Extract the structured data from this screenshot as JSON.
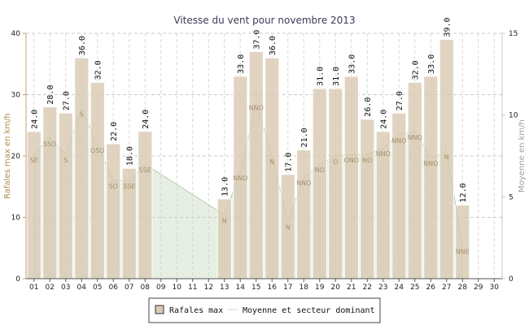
{
  "chart_data": {
    "type": "bar",
    "title": "Vitesse du vent pour novembre 2013",
    "ylabel_left": "Rafales max en km/h",
    "ylabel_right": "Moyenne en km/h",
    "ylim_left": [
      0,
      40
    ],
    "ylim_right": [
      0,
      15
    ],
    "yticks_left": [
      "0",
      "10",
      "20",
      "30",
      "40"
    ],
    "yticks_right": [
      "0",
      "5",
      "10",
      "15"
    ],
    "grid": true,
    "categories": [
      "01",
      "02",
      "03",
      "04",
      "05",
      "06",
      "07",
      "08",
      "09",
      "10",
      "11",
      "12",
      "13",
      "14",
      "15",
      "16",
      "17",
      "18",
      "19",
      "20",
      "21",
      "22",
      "23",
      "24",
      "25",
      "26",
      "27",
      "28",
      "29",
      "30"
    ],
    "series": [
      {
        "name": "Rafales max",
        "type": "bar",
        "color": "#d9cbb3",
        "values": [
          24.0,
          28.0,
          27.0,
          36.0,
          32.0,
          22.0,
          18.0,
          24.0,
          null,
          null,
          null,
          null,
          13.0,
          33.0,
          37.0,
          36.0,
          17.0,
          21.0,
          31.0,
          31.0,
          33.0,
          26.0,
          24.0,
          27.0,
          32.0,
          33.0,
          39.0,
          12.0,
          null,
          null
        ],
        "labels": [
          "24.0",
          "28.0",
          "27.0",
          "36.0",
          "32.0",
          "22.0",
          "18.0",
          "24.0",
          "",
          "",
          "",
          "",
          "13.0",
          "33.0",
          "37.0",
          "36.0",
          "17.0",
          "21.0",
          "31.0",
          "31.0",
          "33.0",
          "26.0",
          "24.0",
          "27.0",
          "32.0",
          "33.0",
          "39.0",
          "12.0",
          "",
          ""
        ]
      },
      {
        "name": "Moyenne et secteur dominant",
        "type": "area",
        "color": "#c9dcc4",
        "values": [
          7.6,
          8.6,
          7.6,
          10.4,
          8.2,
          6.0,
          6.0,
          7.0,
          null,
          null,
          null,
          null,
          3.9,
          6.5,
          10.8,
          7.5,
          3.5,
          6.2,
          7.0,
          7.5,
          7.6,
          7.6,
          8.0,
          8.8,
          9.0,
          7.4,
          7.8,
          2.0,
          null,
          null
        ],
        "directions": [
          "SE",
          "SSO",
          "S",
          "S",
          "OSO",
          "SO",
          "SSE",
          "SSE",
          "",
          "",
          "",
          "",
          "N",
          "NNO",
          "NNO",
          "N",
          "N",
          "NNO",
          "NO",
          "O",
          "ONO",
          "NO",
          "NNO",
          "NNO",
          "NNO",
          "NNO",
          "N",
          "NNE",
          "",
          ""
        ]
      }
    ],
    "legend": {
      "placement": "bottom-center",
      "items": [
        "Rafales max",
        "Moyenne et secteur dominant"
      ]
    }
  }
}
